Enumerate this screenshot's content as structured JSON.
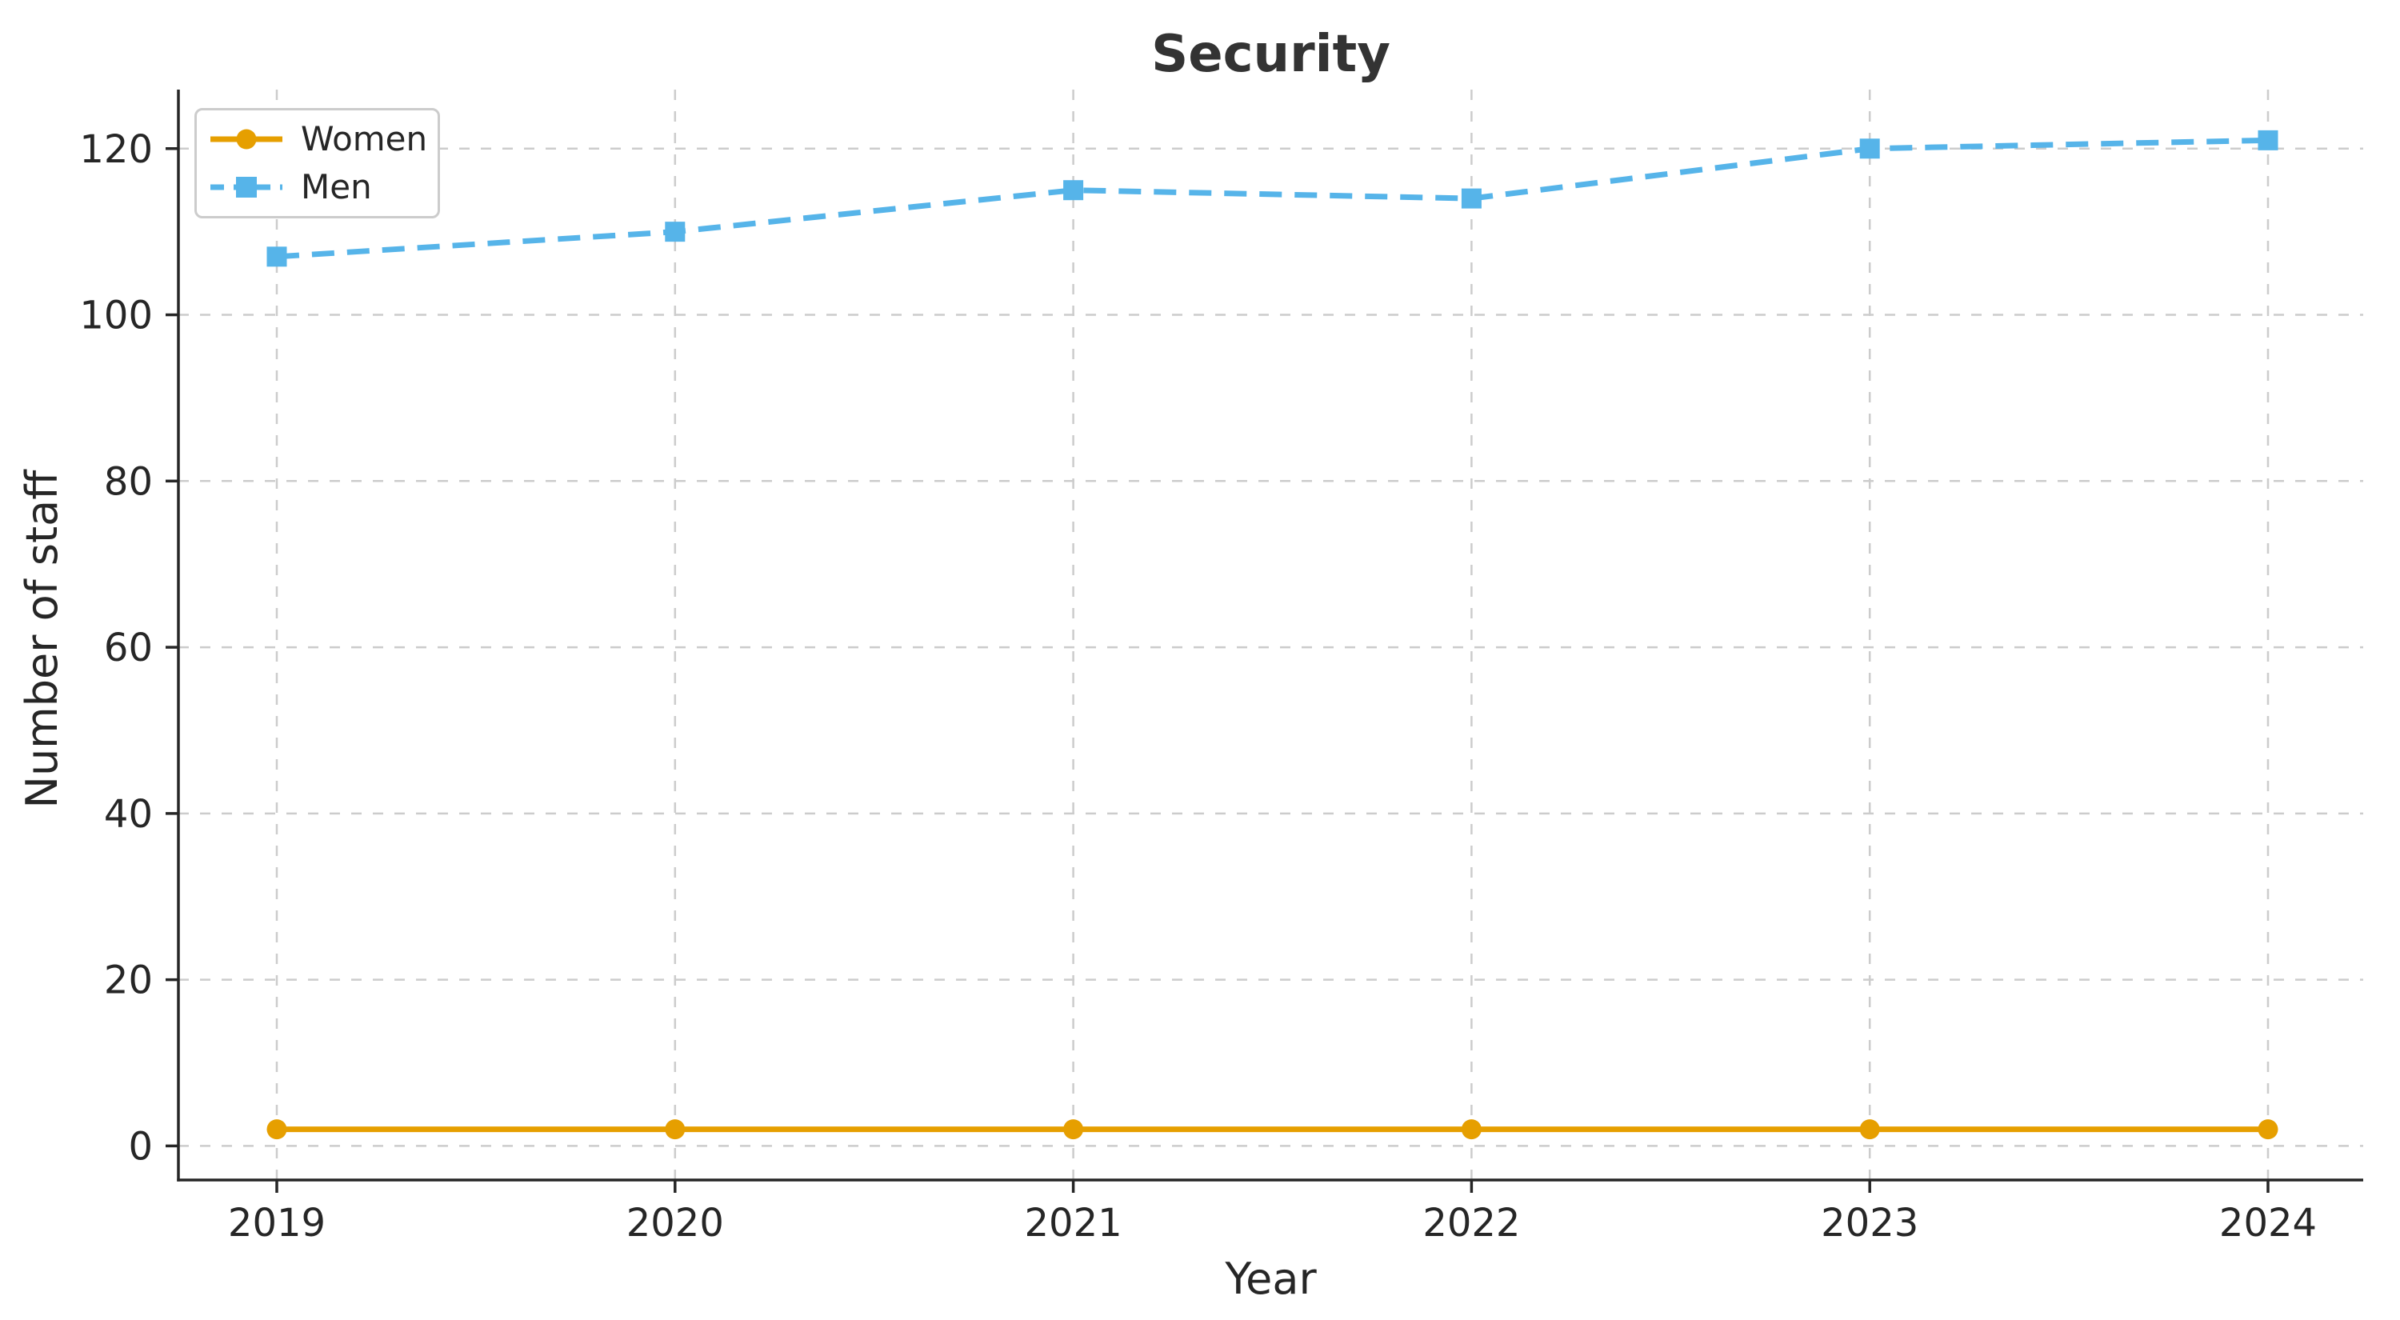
{
  "chart_data": {
    "type": "line",
    "title": "Security",
    "xlabel": "Year",
    "ylabel": "Number of staff",
    "categories": [
      "2019",
      "2020",
      "2021",
      "2022",
      "2023",
      "2024"
    ],
    "series": [
      {
        "name": "Women",
        "values": [
          2,
          2,
          2,
          2,
          2,
          2
        ],
        "color": "#E69F00",
        "line_style": "solid",
        "marker": "circle"
      },
      {
        "name": "Men",
        "values": [
          107,
          110,
          115,
          114,
          120,
          121
        ],
        "color": "#56B4E9",
        "line_style": "dashed",
        "marker": "square"
      }
    ],
    "yticks": [
      0,
      20,
      40,
      60,
      80,
      100,
      120
    ],
    "ylim": [
      -4.1,
      127.1
    ],
    "grid": true,
    "legend_position": "upper left"
  },
  "colors": {
    "grid": "#cccccc",
    "spine": "#262626",
    "tick_text": "#262626",
    "title_text": "#333333",
    "legend_border": "#cccccc",
    "background": "#ffffff"
  }
}
